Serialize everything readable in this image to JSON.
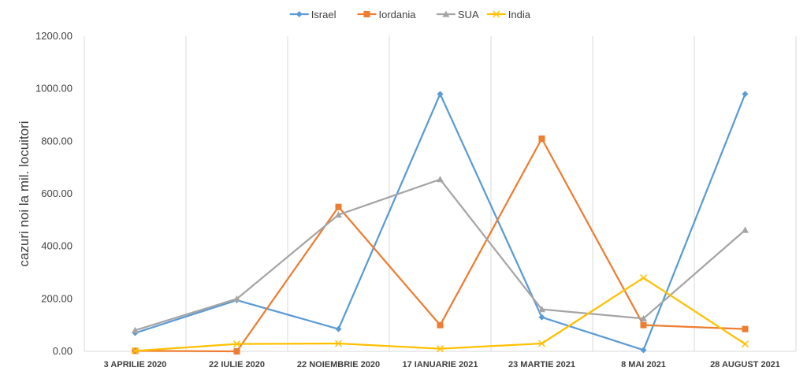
{
  "chart_data": {
    "type": "line",
    "title": "",
    "xlabel": "",
    "ylabel": "cazuri noi la mil. locuitori",
    "categories": [
      "3 APRILIE 2020",
      "22 IULIE 2020",
      "22 NOIEMBRIE 2020",
      "17 IANUARIE 2021",
      "23 MARTIE 2021",
      "8 MAI 2021",
      "28 AUGUST 2021"
    ],
    "x_tick_labels": [
      "3 APRILIE 2020",
      "22 IULIE 2020",
      "22 NOIEMBRIE 2020",
      "17 IANUARIE 2021",
      "23 MARTIE 2021",
      "8 MAI 2021",
      "28 AUGUST 2021"
    ],
    "y_tick_labels": [
      "0.00",
      "200.00",
      "400.00",
      "600.00",
      "800.00",
      "1000.00",
      "1200.00"
    ],
    "ylim": [
      0,
      1200
    ],
    "y_ticks": [
      0,
      200,
      400,
      600,
      800,
      1000,
      1200
    ],
    "grid": "vertical",
    "legend_position": "top",
    "series": [
      {
        "name": "Israel",
        "color": "#5B9BD5",
        "marker": "diamond",
        "values": [
          70,
          195,
          85,
          980,
          130,
          5,
          980
        ]
      },
      {
        "name": "Iordania",
        "color": "#ED7D31",
        "marker": "square",
        "values": [
          2,
          0,
          550,
          100,
          810,
          100,
          85
        ]
      },
      {
        "name": "SUA",
        "color": "#A5A5A5",
        "marker": "triangle",
        "values": [
          80,
          200,
          520,
          655,
          160,
          125,
          462
        ]
      },
      {
        "name": "India",
        "color": "#FFC000",
        "marker": "x",
        "values": [
          2,
          28,
          30,
          10,
          30,
          280,
          28
        ]
      }
    ]
  }
}
